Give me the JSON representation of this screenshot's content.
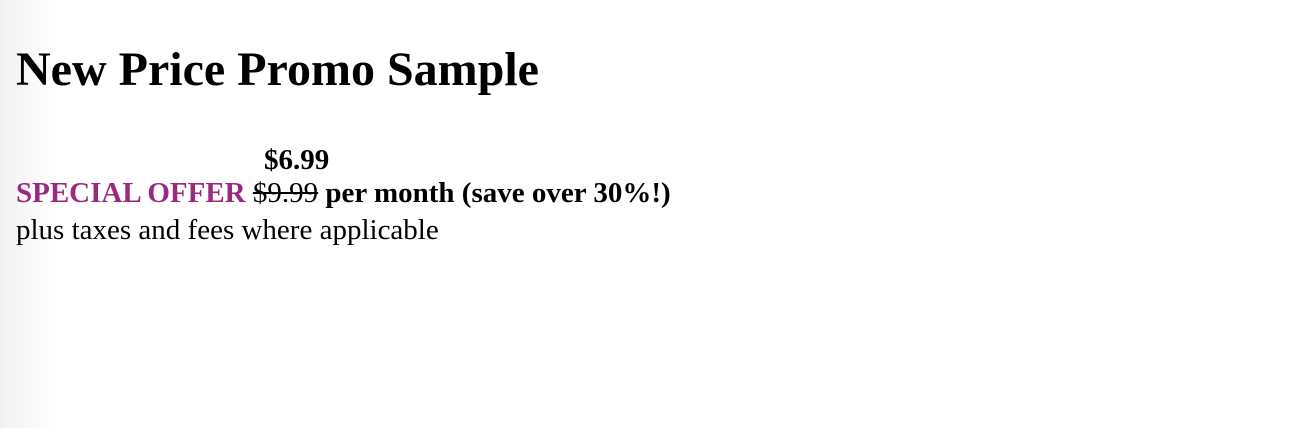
{
  "page": {
    "title": "New Price Promo Sample"
  },
  "promo": {
    "new_price": "$6.99",
    "label": "SPECIAL OFFER",
    "old_price": "$9.99",
    "per_month": "per month (save over 30%!)",
    "fine_print": "plus taxes and fees where applicable"
  },
  "colors": {
    "special_offer": "#9b2a7e"
  }
}
